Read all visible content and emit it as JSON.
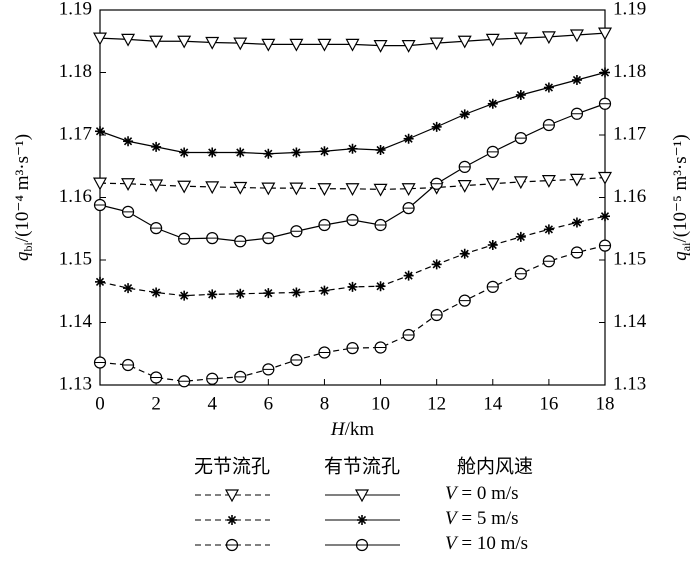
{
  "chart_data": {
    "type": "line",
    "x": [
      0,
      1,
      2,
      3,
      4,
      5,
      6,
      7,
      8,
      9,
      10,
      11,
      12,
      13,
      14,
      15,
      16,
      17,
      18
    ],
    "xlim": [
      0,
      18
    ],
    "xticks": [
      0,
      2,
      4,
      6,
      8,
      10,
      12,
      14,
      16,
      18
    ],
    "ylim": [
      1.13,
      1.19
    ],
    "yticks": [
      1.13,
      1.14,
      1.15,
      1.16,
      1.17,
      1.18,
      1.19
    ],
    "y2lim": [
      1.13,
      1.19
    ],
    "y2ticks": [
      1.13,
      1.14,
      1.15,
      1.16,
      1.17,
      1.18,
      1.19
    ],
    "xlabel": {
      "symbol": "H",
      "unit": "/km"
    },
    "ylabel": {
      "symbol": "q",
      "sub": "bi",
      "unit": "/(10⁻⁴ m³·s⁻¹)"
    },
    "y2label": {
      "symbol": "q",
      "sub": "ai",
      "unit": "/(10⁻⁵ m³·s⁻¹)"
    },
    "color": "#000000",
    "series": [
      {
        "style": "dashed",
        "marker": "triangle",
        "values": [
          1.1623,
          1.1622,
          1.162,
          1.1618,
          1.1617,
          1.1616,
          1.1615,
          1.1615,
          1.1614,
          1.1614,
          1.1613,
          1.1614,
          1.1616,
          1.1619,
          1.1622,
          1.1625,
          1.1627,
          1.1629,
          1.1632
        ]
      },
      {
        "style": "dashed",
        "marker": "star",
        "values": [
          1.1465,
          1.1455,
          1.1448,
          1.1443,
          1.1445,
          1.1446,
          1.1447,
          1.1448,
          1.1451,
          1.1457,
          1.1458,
          1.1475,
          1.1493,
          1.151,
          1.1524,
          1.1537,
          1.1549,
          1.156,
          1.157
        ]
      },
      {
        "style": "dashed",
        "marker": "circle",
        "values": [
          1.1336,
          1.1332,
          1.1312,
          1.1306,
          1.131,
          1.1313,
          1.1325,
          1.134,
          1.1352,
          1.1359,
          1.136,
          1.138,
          1.1412,
          1.1435,
          1.1457,
          1.1478,
          1.1498,
          1.1512,
          1.1523
        ]
      },
      {
        "style": "solid",
        "marker": "triangle",
        "values": [
          1.1855,
          1.1853,
          1.185,
          1.185,
          1.1848,
          1.1847,
          1.1845,
          1.1845,
          1.1845,
          1.1845,
          1.1843,
          1.1843,
          1.1847,
          1.185,
          1.1853,
          1.1855,
          1.1857,
          1.186,
          1.1863
        ]
      },
      {
        "style": "solid",
        "marker": "star",
        "values": [
          1.1706,
          1.169,
          1.1681,
          1.1672,
          1.1672,
          1.1672,
          1.167,
          1.1672,
          1.1674,
          1.1678,
          1.1676,
          1.1694,
          1.1713,
          1.1733,
          1.175,
          1.1764,
          1.1776,
          1.1788,
          1.18
        ]
      },
      {
        "style": "solid",
        "marker": "circle",
        "values": [
          1.1588,
          1.1577,
          1.1551,
          1.1534,
          1.1535,
          1.153,
          1.1535,
          1.1546,
          1.1556,
          1.1564,
          1.1556,
          1.1583,
          1.1622,
          1.1649,
          1.1673,
          1.1695,
          1.1716,
          1.1734,
          1.175
        ]
      }
    ],
    "legend": {
      "headers": [
        "无节流孔",
        "有节流孔",
        "舱内风速"
      ],
      "rows": [
        {
          "marker": "triangle",
          "label": "V = 0 m/s"
        },
        {
          "marker": "star",
          "label": "V = 5 m/s"
        },
        {
          "marker": "circle",
          "label": "V = 10 m/s"
        }
      ]
    }
  }
}
